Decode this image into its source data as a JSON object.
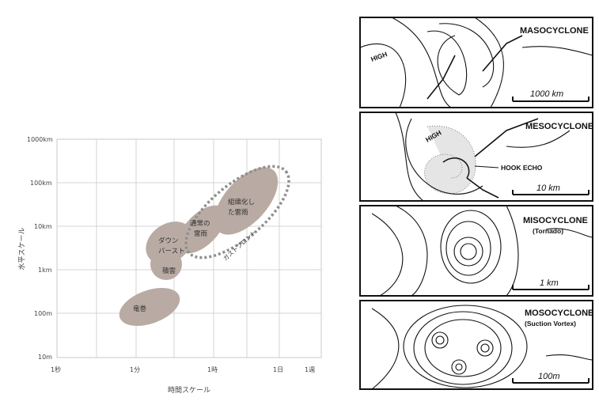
{
  "left_chart": {
    "y_axis_label": "水平スケール",
    "x_axis_label": "時間スケール",
    "y_ticks": [
      "1000km",
      "100km",
      "10km",
      "1km",
      "100m",
      "10m"
    ],
    "x_ticks": [
      "1秒",
      "1分",
      "1時",
      "1日",
      "1週"
    ],
    "blobs": [
      "竜巻",
      "積雲",
      "ダウンバースト",
      "通常の雷雨",
      "組織化した雷雨"
    ],
    "blob_texts": {
      "tornado": "竜巻",
      "cumulus": "積雲",
      "downburst_1": "ダウン",
      "downburst_2": "バースト",
      "ordinary_1": "通常の",
      "ordinary_2": "雷雨",
      "organized_1": "組織化し",
      "organized_2": "た雷雨",
      "gust_front": "ガストフロント"
    },
    "colors": {
      "blob": "#b9aba3",
      "grid": "#c9c9c9",
      "dotted": "#8f8f8f"
    }
  },
  "panels": [
    {
      "title": "MASOCYCLONE",
      "subtitle": "",
      "scale": "1000 km",
      "label_high": "HIGH"
    },
    {
      "title": "MESOCYCLONE",
      "subtitle": "",
      "scale": "10 km",
      "label_high": "HIGH",
      "annotation": "HOOK ECHO"
    },
    {
      "title": "MISOCYCLONE",
      "subtitle": "(Tornado)",
      "scale": "1 km"
    },
    {
      "title": "MOSOCYCLONE",
      "subtitle": "(Suction Vortex)",
      "scale": "100m"
    }
  ]
}
